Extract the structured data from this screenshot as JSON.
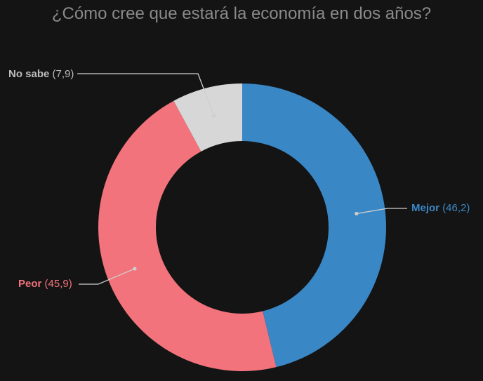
{
  "chart_data": {
    "type": "pie",
    "title": "¿Cómo cree que estará la economía en dos años?",
    "slices": [
      {
        "label": "Mejor",
        "value": 46.2,
        "value_text": "(46,2)",
        "color": "#3a87c6"
      },
      {
        "label": "Peor",
        "value": 45.9,
        "value_text": "(45,9)",
        "color": "#f2737b"
      },
      {
        "label": "No sabe",
        "value": 7.9,
        "value_text": "(7,9)",
        "color": "#d7d7d7"
      }
    ]
  },
  "colors": {
    "background": "#141414",
    "title": "#8a8a8a",
    "leader_line": "#cfcfcf",
    "label_neutral": "#bdbdbd"
  }
}
